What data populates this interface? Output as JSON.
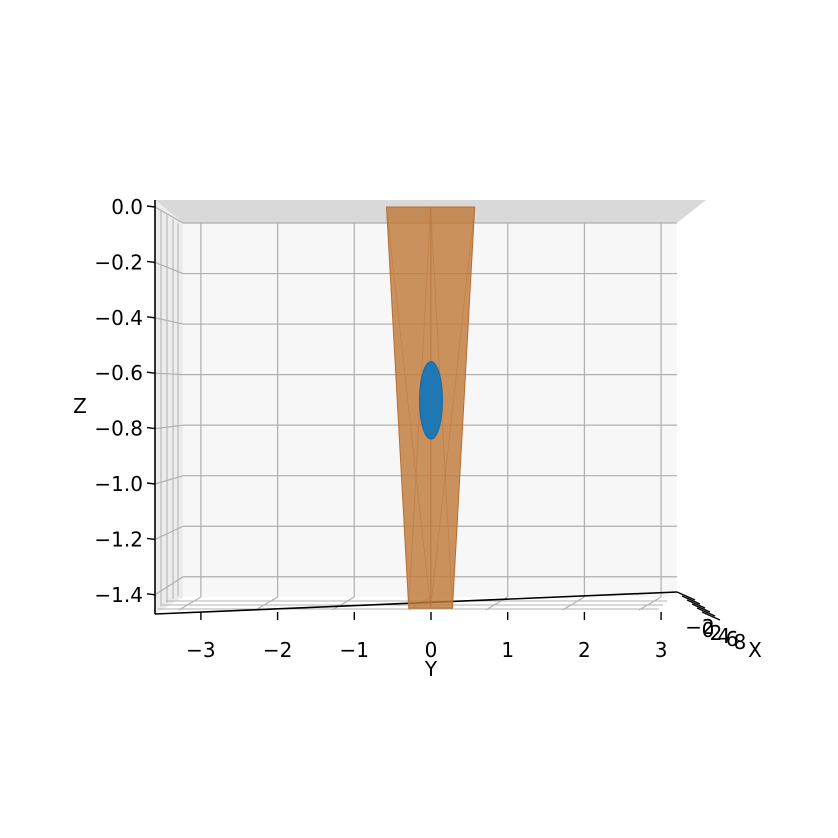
{
  "chart_data": {
    "type": "3d-surface",
    "title": "",
    "axes": {
      "x": {
        "label": "X",
        "ticks": [
          "−2",
          "0",
          "2",
          "4",
          "6",
          "8"
        ]
      },
      "y": {
        "label": "Y",
        "ticks": [
          "−3",
          "−2",
          "−1",
          "0",
          "1",
          "2",
          "3"
        ],
        "values": [
          -3,
          -2,
          -1,
          0,
          1,
          2,
          3
        ]
      },
      "z": {
        "label": "Z",
        "ticks": [
          "0.0",
          "−0.2",
          "−0.4",
          "−0.6",
          "−0.8",
          "−1.0",
          "−1.2",
          "−1.4"
        ],
        "values": [
          0.0,
          -0.2,
          -0.4,
          -0.6,
          -0.8,
          -1.0,
          -1.2,
          -1.4
        ]
      }
    },
    "ylim": [
      -3.6,
      3.2
    ],
    "zlim": [
      -1.48,
      0.0
    ],
    "grid": true,
    "surfaces": [
      {
        "name": "",
        "shape": "tapered-plane",
        "color": "#c07a3a",
        "top": {
          "z": 0.0,
          "y_min": -0.58,
          "y_max": 0.57
        },
        "bottom": {
          "z": -1.45,
          "y_min": -0.29,
          "y_max": 0.28
        }
      },
      {
        "name": "",
        "shape": "ellipsoid",
        "color": "#1f77b4",
        "center": {
          "y": 0.0,
          "z": -0.68
        },
        "half_width_y": 0.15,
        "half_height_z": 0.14
      }
    ],
    "colors": {
      "pane": "#f7f7f7",
      "top_pane": "#d9d9d9",
      "grid": "#b0b0b0"
    }
  }
}
